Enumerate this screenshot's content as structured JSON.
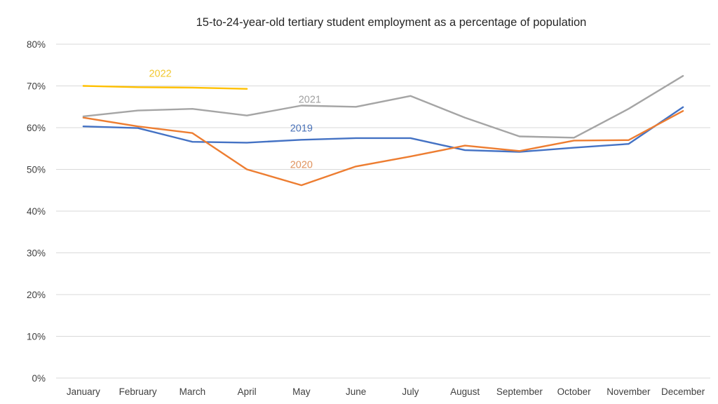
{
  "chart_data": {
    "type": "line",
    "title": "15-to-24-year-old tertiary student employment as a percentage of population",
    "xlabel": "",
    "ylabel": "",
    "categories": [
      "January",
      "February",
      "March",
      "April",
      "May",
      "June",
      "July",
      "August",
      "September",
      "October",
      "November",
      "December"
    ],
    "ylim": [
      0,
      80
    ],
    "yticks": [
      0,
      10,
      20,
      30,
      40,
      50,
      60,
      70,
      80
    ],
    "ytick_labels": [
      "0%",
      "10%",
      "20%",
      "30%",
      "40%",
      "50%",
      "60%",
      "70%",
      "80%"
    ],
    "grid": true,
    "legend": "inline labels",
    "series": [
      {
        "name": "2019",
        "color": "#4472C4",
        "label_color": "#4A72B8",
        "values": [
          60.3,
          59.9,
          56.6,
          56.4,
          57.1,
          57.5,
          57.5,
          54.6,
          54.2,
          55.2,
          56.1,
          64.9
        ]
      },
      {
        "name": "2020",
        "color": "#ED7D31",
        "label_color": "#E0935E",
        "values": [
          62.4,
          60.3,
          58.7,
          50.0,
          46.2,
          50.7,
          53.1,
          55.7,
          54.4,
          56.9,
          57.0,
          64.0
        ]
      },
      {
        "name": "2021",
        "color": "#A5A5A5",
        "label_color": "#A0A0A0",
        "values": [
          62.7,
          64.1,
          64.5,
          62.9,
          65.3,
          65.0,
          67.6,
          62.4,
          57.9,
          57.6,
          64.5,
          72.4
        ]
      },
      {
        "name": "2022",
        "color": "#FFC000",
        "label_color": "#F2C830",
        "values": [
          70.0,
          69.7,
          69.6,
          69.3,
          null,
          null,
          null,
          null,
          null,
          null,
          null,
          null
        ]
      }
    ],
    "annotations": [
      {
        "text": "2022",
        "series": "2022",
        "near_category": "February",
        "y_value": 73.0
      },
      {
        "text": "2021",
        "series": "2021",
        "near_category": "May",
        "y_value": 66.8
      },
      {
        "text": "2019",
        "series": "2019",
        "near_category": "May",
        "y_value": 59.9
      },
      {
        "text": "2020",
        "series": "2020",
        "near_category": "May",
        "y_value": 51.2
      }
    ]
  }
}
